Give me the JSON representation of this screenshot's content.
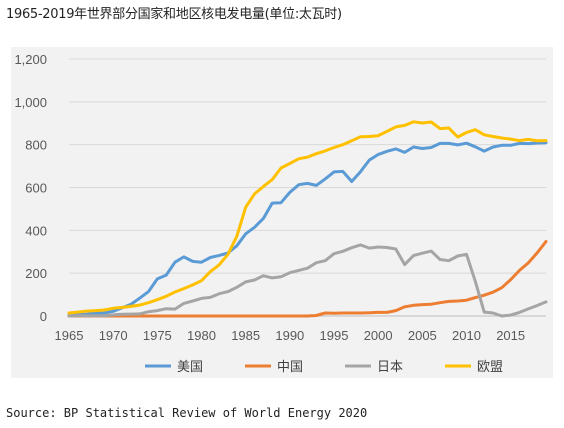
{
  "header": {
    "title": "1965-2019年世界部分国家和地区核电发电量(单位:太瓦时)"
  },
  "footer": {
    "source": "Source: BP Statistical Review of World Energy 2020"
  },
  "chart_data": {
    "type": "line",
    "title": "1965-2019年世界部分国家和地区核电发电量(单位:太瓦时)",
    "xlabel": "",
    "ylabel": "",
    "ylim": [
      0,
      1200
    ],
    "xlim": [
      1965,
      2019
    ],
    "grid": true,
    "legend_position": "bottom",
    "x_ticks": [
      "1965",
      "1970",
      "1975",
      "1980",
      "1985",
      "1990",
      "1995",
      "2000",
      "2005",
      "2010",
      "2015"
    ],
    "y_ticks": [
      "0",
      "200",
      "400",
      "600",
      "800",
      "1,000",
      "1,200"
    ],
    "x": [
      1965,
      1966,
      1967,
      1968,
      1969,
      1970,
      1971,
      1972,
      1973,
      1974,
      1975,
      1976,
      1977,
      1978,
      1979,
      1980,
      1981,
      1982,
      1983,
      1984,
      1985,
      1986,
      1987,
      1988,
      1989,
      1990,
      1991,
      1992,
      1993,
      1994,
      1995,
      1996,
      1997,
      1998,
      1999,
      2000,
      2001,
      2002,
      2003,
      2004,
      2005,
      2006,
      2007,
      2008,
      2009,
      2010,
      2011,
      2012,
      2013,
      2014,
      2015,
      2016,
      2017,
      2018,
      2019
    ],
    "series": [
      {
        "name": "美国",
        "color": "#5b9bd5",
        "values": [
          4,
          6,
          8,
          13,
          14,
          22,
          38,
          54,
          83,
          114,
          173,
          191,
          251,
          276,
          255,
          251,
          273,
          283,
          294,
          328,
          384,
          414,
          455,
          527,
          529,
          577,
          613,
          619,
          610,
          640,
          673,
          675,
          628,
          674,
          728,
          754,
          769,
          780,
          764,
          789,
          782,
          787,
          806,
          806,
          799,
          807,
          790,
          770,
          789,
          797,
          797,
          806,
          805,
          808,
          809
        ]
      },
      {
        "name": "中国",
        "color": "#ed7d31",
        "values": [
          0,
          0,
          0,
          0,
          0,
          0,
          0,
          0,
          0,
          0,
          0,
          0,
          0,
          0,
          0,
          0,
          0,
          0,
          0,
          0,
          0,
          0,
          0,
          0,
          0,
          0,
          0,
          0,
          2.5,
          14,
          13,
          14,
          14,
          14,
          15,
          17,
          17,
          25,
          43,
          50,
          53,
          55,
          62,
          68,
          70,
          74,
          86,
          97,
          111,
          132,
          170,
          213,
          248,
          295,
          348
        ]
      },
      {
        "name": "日本",
        "color": "#a5a5a5",
        "values": [
          0,
          1,
          1,
          1,
          1,
          5,
          8,
          9,
          10,
          20,
          25,
          34,
          32,
          59,
          70,
          82,
          87,
          104,
          114,
          134,
          159,
          168,
          188,
          178,
          183,
          202,
          213,
          223,
          249,
          258,
          291,
          302,
          319,
          332,
          317,
          322,
          320,
          313,
          240,
          282,
          293,
          303,
          264,
          258,
          280,
          288,
          162,
          18,
          14,
          0,
          4,
          17,
          33,
          49,
          66
        ]
      },
      {
        "name": "欧盟",
        "color": "#ffc000",
        "values": [
          14,
          18,
          23,
          25,
          28,
          36,
          40,
          45,
          51,
          62,
          76,
          92,
          112,
          128,
          145,
          165,
          207,
          239,
          288,
          372,
          508,
          570,
          604,
          637,
          691,
          712,
          734,
          742,
          758,
          771,
          787,
          800,
          818,
          837,
          838,
          842,
          862,
          883,
          890,
          907,
          901,
          906,
          875,
          878,
          836,
          857,
          870,
          846,
          838,
          831,
          826,
          819,
          825,
          818,
          819
        ]
      }
    ]
  }
}
